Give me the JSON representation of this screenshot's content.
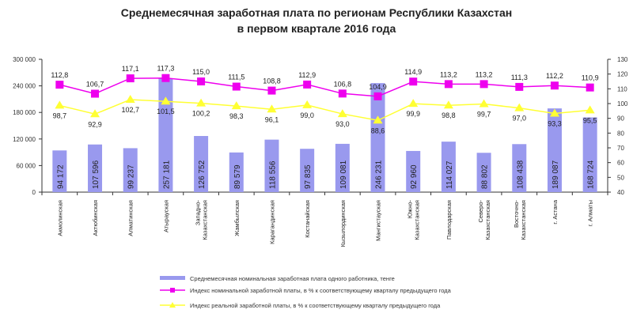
{
  "chart_data": {
    "type": "bar+line",
    "title": [
      "Среднемесячная заработная плата по регионам Республики Казахстан",
      "в первом квартале 2016 года"
    ],
    "categories": [
      "Акмолинская",
      "Актюбинская",
      "Алматинская",
      "Атырауская",
      "Западно-Казахстанская",
      "Жамбылская",
      "Карагандинская",
      "Костанайская",
      "Кызылординская",
      "Мангистауская",
      "Южно-Казахстанская",
      "Павлодарская",
      "Северо-Казахстанская",
      "Восточно-Казахстанская",
      "г. Астана",
      "г. Алматы"
    ],
    "category_lines": [
      [
        "Акмолинская"
      ],
      [
        "Актюбинская"
      ],
      [
        "Алматинская"
      ],
      [
        "Атырауская"
      ],
      [
        "Западно-",
        "Казахстанская"
      ],
      [
        "Жамбылская"
      ],
      [
        "Карагандинская"
      ],
      [
        "Костанайская"
      ],
      [
        "Кызылординская"
      ],
      [
        "Мангистауская"
      ],
      [
        "Южно-",
        "Казахстанская"
      ],
      [
        "Павлодарская"
      ],
      [
        "Северо-",
        "Казахстанская"
      ],
      [
        "Восточно-",
        "Казахстанская"
      ],
      [
        "г. Астана"
      ],
      [
        "г. Алматы"
      ]
    ],
    "left_axis": {
      "ylim": [
        0,
        300000
      ],
      "ticks": [
        "0",
        "60 000",
        "120 000",
        "180 000",
        "240 000",
        "300 000"
      ]
    },
    "right_axis": {
      "ylim": [
        40,
        130
      ],
      "ticks": [
        "40",
        "50",
        "60",
        "70",
        "80",
        "90",
        "100",
        "110",
        "120",
        "130"
      ]
    },
    "grid": false,
    "legend_placement": "bottom",
    "series": [
      {
        "name": "Среднемесячная номинальная заработная плата одного работника, тенге",
        "type": "bar",
        "axis": "left",
        "color": "#9999ee",
        "values": [
          94172,
          107596,
          99237,
          257181,
          126752,
          89579,
          118556,
          97835,
          109081,
          246231,
          92960,
          114027,
          88802,
          108438,
          189087,
          168724
        ],
        "labels": [
          "94 172",
          "107 596",
          "99 237",
          "257 181",
          "126 752",
          "89 579",
          "118 556",
          "97 835",
          "109 081",
          "246 231",
          "92 960",
          "114 027",
          "88 802",
          "108 438",
          "189 087",
          "168 724"
        ]
      },
      {
        "name": "Индекс номинальной заработной платы, в % к соответствующему кварталу предыдущего года",
        "type": "line",
        "marker": "square",
        "axis": "right",
        "color": "#ee00ee",
        "values": [
          112.8,
          106.7,
          117.1,
          117.3,
          115.0,
          111.5,
          108.8,
          112.9,
          106.8,
          104.9,
          114.9,
          113.2,
          113.2,
          111.3,
          112.2,
          110.9
        ],
        "labels": [
          "112,8",
          "106,7",
          "117,1",
          "117,3",
          "115,0",
          "111,5",
          "108,8",
          "112,9",
          "106,8",
          "104,9",
          "114,9",
          "113,2",
          "113,2",
          "111,3",
          "112,2",
          "110,9"
        ]
      },
      {
        "name": "Индекс реальной заработной платы, в % к соответствующему кварталу предыдущего года",
        "type": "line",
        "marker": "triangle",
        "axis": "right",
        "color": "#ffff33",
        "values": [
          98.7,
          92.9,
          102.7,
          101.5,
          100.2,
          98.3,
          96.1,
          99.0,
          93.0,
          88.6,
          99.9,
          98.8,
          99.7,
          97.0,
          93.3,
          95.5
        ],
        "labels": [
          "98,7",
          "92,9",
          "102,7",
          "101,5",
          "100,2",
          "98,3",
          "96,1",
          "99,0",
          "93,0",
          "88,6",
          "99,9",
          "98,8",
          "99,7",
          "97,0",
          "93,3",
          "95,5"
        ]
      }
    ]
  }
}
